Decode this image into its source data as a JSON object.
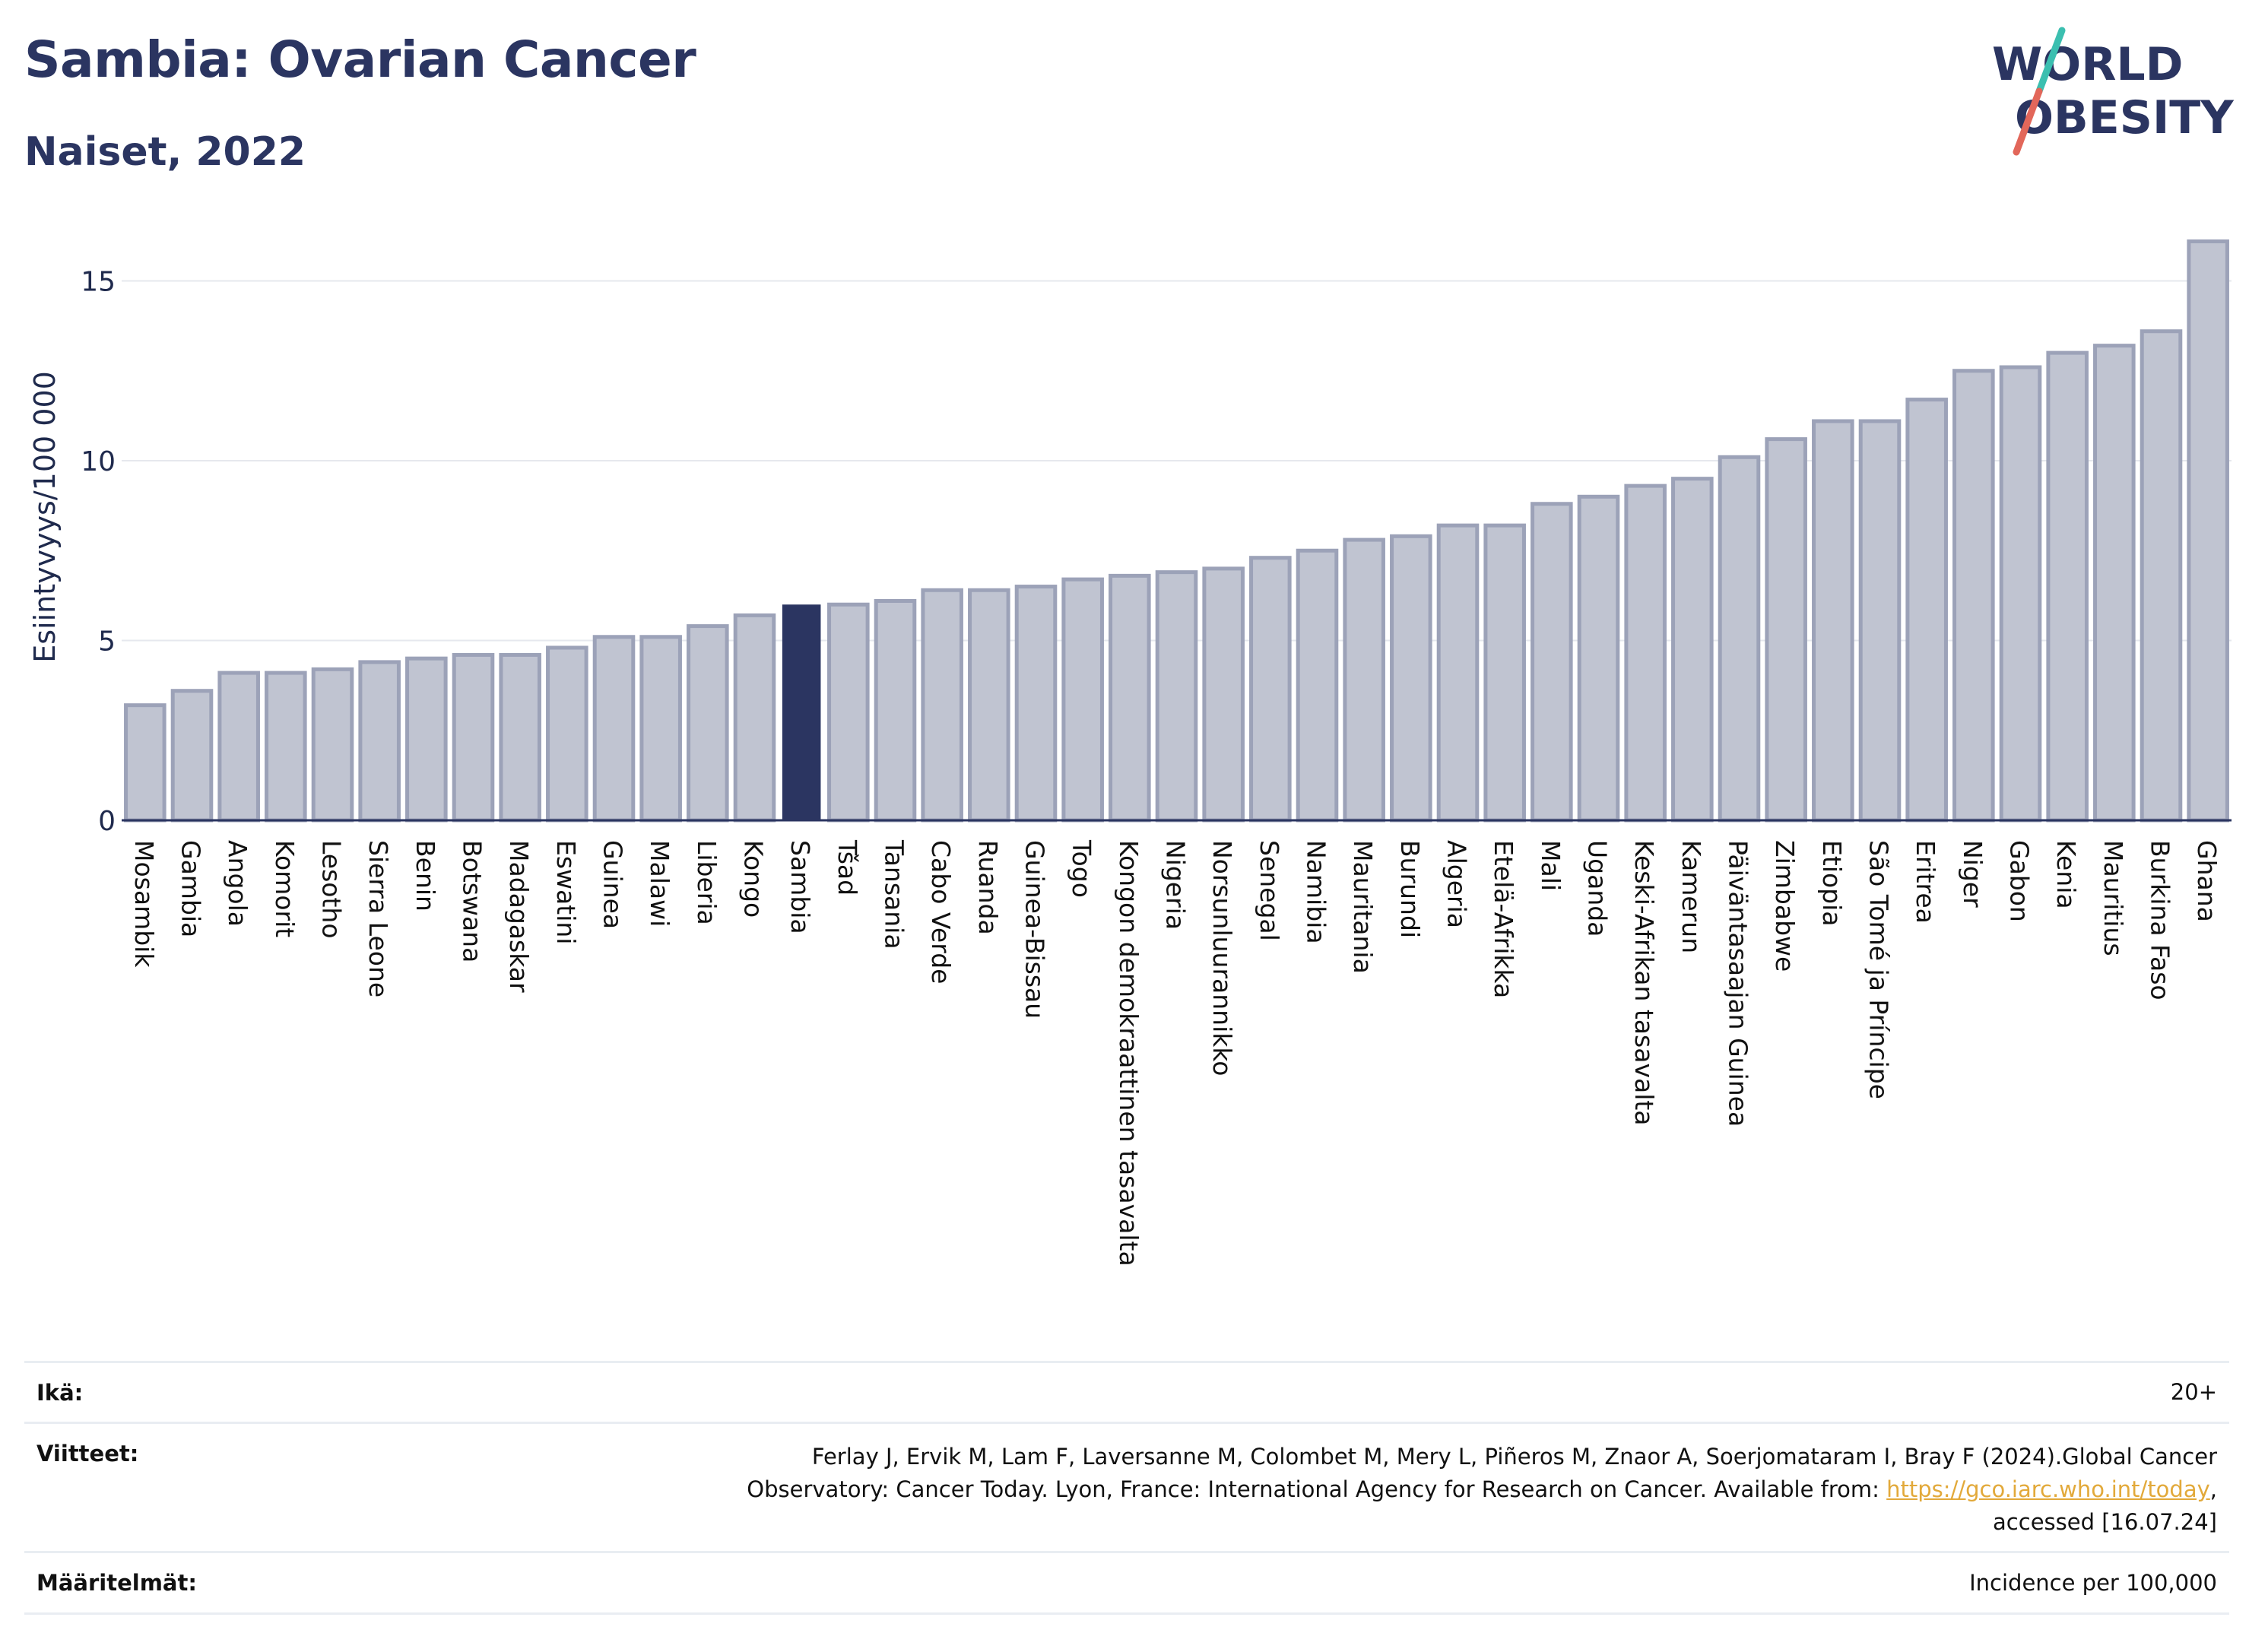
{
  "header": {
    "title": "Sambia: Ovarian Cancer",
    "subtitle": "Naiset, 2022"
  },
  "logo": {
    "text_line1": "WORLD",
    "text_line2": "OBESITY",
    "colors": {
      "text": "#2b3561",
      "slash_top": "#3bbfb0",
      "slash_bottom": "#e2675a"
    }
  },
  "chart_data": {
    "type": "bar",
    "title": "Sambia: Ovarian Cancer",
    "subtitle": "Naiset, 2022",
    "ylabel": "Esiintyvyys/100 000",
    "xlabel": "",
    "ylim": [
      0,
      16.5
    ],
    "yticks": [
      0,
      5,
      10,
      15
    ],
    "grid": true,
    "highlight": "Sambia",
    "colors": {
      "bar": "#c0c4d1",
      "bar_border": "#9ca2b8",
      "highlight": "#2b3561",
      "axis": "#2b3561",
      "grid": "#e6e8ee"
    },
    "categories": [
      "Mosambik",
      "Gambia",
      "Angola",
      "Komorit",
      "Lesotho",
      "Sierra Leone",
      "Benin",
      "Botswana",
      "Madagaskar",
      "Eswatini",
      "Guinea",
      "Malawi",
      "Liberia",
      "Kongo",
      "Sambia",
      "Tšad",
      "Tansania",
      "Cabo Verde",
      "Ruanda",
      "Guinea-Bissau",
      "Togo",
      "Kongon demokraattinen tasavalta",
      "Nigeria",
      "Norsunluurannikko",
      "Senegal",
      "Namibia",
      "Mauritania",
      "Burundi",
      "Algeria",
      "Etelä-Afrikka",
      "Mali",
      "Uganda",
      "Keski-Afrikan tasavalta",
      "Kamerun",
      "Päiväntasaajan Guinea",
      "Zimbabwe",
      "Etiopia",
      "São Tomé ja Príncipe",
      "Eritrea",
      "Niger",
      "Gabon",
      "Kenia",
      "Mauritius",
      "Burkina Faso",
      "Ghana"
    ],
    "values": [
      3.2,
      3.6,
      4.1,
      4.1,
      4.2,
      4.4,
      4.5,
      4.6,
      4.6,
      4.8,
      5.1,
      5.1,
      5.4,
      5.7,
      6.0,
      6.0,
      6.1,
      6.4,
      6.4,
      6.5,
      6.7,
      6.8,
      6.9,
      7.0,
      7.3,
      7.5,
      7.8,
      7.9,
      8.2,
      8.2,
      8.8,
      9.0,
      9.3,
      9.5,
      10.1,
      10.6,
      11.1,
      11.1,
      11.7,
      12.5,
      12.6,
      13.0,
      13.2,
      13.6,
      16.1
    ]
  },
  "info": {
    "age_label": "Ikä:",
    "age_value": "20+",
    "refs_label": "Viitteet:",
    "refs_line1": "Ferlay J, Ervik M, Lam F, Laversanne M, Colombet M, Mery L, Piñeros M, Znaor A, Soerjomataram I, Bray F (2024).Global Cancer",
    "refs_line2_pre": "Observatory: Cancer Today. Lyon, France: International Agency for Research on Cancer. Available from: ",
    "refs_link": "https://gco.iarc.who.int/today",
    "refs_line2_post": ",",
    "refs_line3": "accessed [16.07.24]",
    "defs_label": "Määritelmät:",
    "defs_value": "Incidence per 100,000"
  }
}
